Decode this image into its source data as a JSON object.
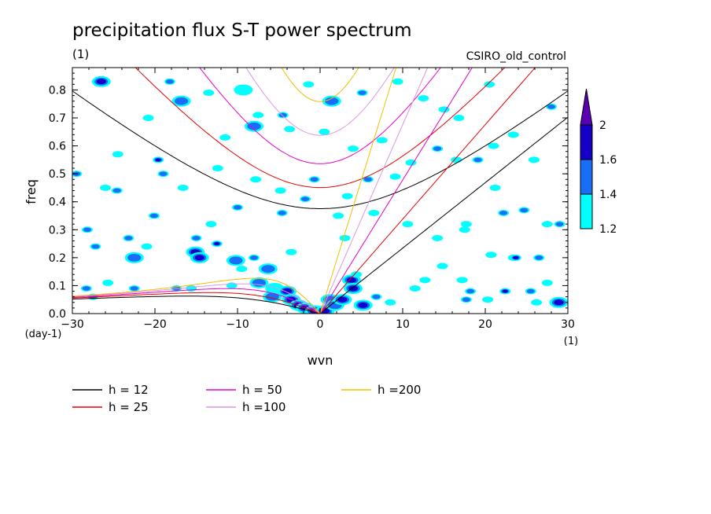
{
  "chart_data": {
    "type": "heatmap",
    "title": "precipitation flux S-T power spectrum",
    "subtitle_left": "(1)",
    "subtitle_right": "CSIRO_old_control",
    "xlabel": "wvn",
    "ylabel": "freq",
    "x_unit": "(1)",
    "y_unit": "(day-1)",
    "xlim": [
      -30,
      30
    ],
    "ylim": [
      0,
      0.88
    ],
    "x_ticks": [
      -30,
      -20,
      -10,
      0,
      10,
      20,
      30
    ],
    "y_ticks": [
      0.0,
      0.1,
      0.2,
      0.3,
      0.4,
      0.5,
      0.6,
      0.7,
      0.8
    ],
    "colorbar": {
      "levels": [
        "1.2",
        "1.4",
        "1.6",
        "2"
      ],
      "colors": [
        "#00ffff",
        "#1a6ef5",
        "#1400c8",
        "#5a00b4"
      ],
      "extend": "max"
    },
    "dispersion_curves": [
      {
        "h": 12,
        "label": "h = 12",
        "color": "#000000"
      },
      {
        "h": 25,
        "label": "h = 25",
        "color": "#e60000"
      },
      {
        "h": 50,
        "label": "h = 50",
        "color": "#e600c8"
      },
      {
        "h": 100,
        "label": "h =100",
        "color": "#dc96e6"
      },
      {
        "h": 200,
        "label": "h =200",
        "color": "#f0be00"
      }
    ],
    "blobs": [
      [
        -27.5,
        0.06,
        1,
        1.4
      ],
      [
        -20.8,
        0.7,
        1,
        1.3
      ],
      [
        -19.6,
        0.55,
        1,
        1.6
      ],
      [
        -19,
        0.5,
        1,
        1.4
      ],
      [
        -24.5,
        0.57,
        1,
        1.3
      ],
      [
        -23.2,
        0.27,
        1,
        1.4
      ],
      [
        -22.5,
        0.2,
        2,
        1.5
      ],
      [
        -20.1,
        0.35,
        1,
        1.4
      ],
      [
        -15,
        0.27,
        1,
        1.5
      ],
      [
        -15.1,
        0.22,
        2,
        1.8
      ],
      [
        -14.6,
        0.2,
        2,
        1.7
      ],
      [
        -12.5,
        0.25,
        1,
        1.6
      ],
      [
        -10.2,
        0.19,
        2,
        1.4
      ],
      [
        -9.5,
        0.16,
        1,
        1.3
      ],
      [
        -8,
        0.2,
        1,
        1.4
      ],
      [
        -6.3,
        0.16,
        2,
        1.5
      ],
      [
        -7.4,
        0.11,
        2,
        1.4
      ],
      [
        -5.5,
        0.09,
        2,
        1.3
      ],
      [
        -4,
        0.08,
        2,
        1.6
      ],
      [
        -5.8,
        0.06,
        2,
        1.4
      ],
      [
        -3.5,
        0.05,
        2,
        1.6
      ],
      [
        -2.6,
        0.03,
        2,
        1.9
      ],
      [
        -1.8,
        0.02,
        2,
        1.8
      ],
      [
        -0.7,
        0.01,
        2,
        1.9
      ],
      [
        0.6,
        0.01,
        2,
        1.6
      ],
      [
        1.2,
        0.05,
        2,
        1.5
      ],
      [
        1.8,
        0.03,
        2,
        1.5
      ],
      [
        2.7,
        0.05,
        2,
        1.6
      ],
      [
        3.8,
        0.12,
        2,
        1.8
      ],
      [
        4,
        0.09,
        2,
        1.6
      ],
      [
        5.2,
        0.03,
        2,
        1.6
      ],
      [
        4.4,
        0.14,
        1,
        1.3
      ],
      [
        6.8,
        0.06,
        1,
        1.4
      ],
      [
        8.5,
        0.04,
        1,
        1.3
      ],
      [
        -15.6,
        0.09,
        1,
        1.3
      ],
      [
        -17.4,
        0.09,
        1,
        1.4
      ],
      [
        -22.5,
        0.09,
        1,
        1.4
      ],
      [
        -28.3,
        0.09,
        1,
        1.5
      ],
      [
        -25.7,
        0.11,
        1,
        1.3
      ],
      [
        -28.2,
        0.3,
        1,
        1.4
      ],
      [
        -27.2,
        0.24,
        1,
        1.4
      ],
      [
        -29.5,
        0.5,
        1,
        1.4
      ],
      [
        -26.5,
        0.83,
        2,
        1.6
      ],
      [
        -18.2,
        0.83,
        1,
        1.4
      ],
      [
        -16.8,
        0.76,
        2,
        1.5
      ],
      [
        -9.3,
        0.8,
        2,
        1.3
      ],
      [
        -8,
        0.67,
        2,
        1.4
      ],
      [
        -7.5,
        0.71,
        1,
        1.3
      ],
      [
        -3.7,
        0.66,
        1,
        1.3
      ],
      [
        1.4,
        0.76,
        2,
        1.5
      ],
      [
        3.3,
        0.42,
        1,
        1.3
      ],
      [
        -0.7,
        0.48,
        1,
        1.4
      ],
      [
        -4.8,
        0.44,
        1,
        1.3
      ],
      [
        -7.8,
        0.48,
        1,
        1.3
      ],
      [
        -12.4,
        0.52,
        1,
        1.3
      ],
      [
        -16.6,
        0.45,
        1,
        1.3
      ],
      [
        -24.6,
        0.44,
        1,
        1.4
      ],
      [
        -26,
        0.45,
        1,
        1.3
      ],
      [
        -21,
        0.24,
        1,
        1.3
      ],
      [
        -13.2,
        0.32,
        1,
        1.3
      ],
      [
        -10,
        0.38,
        1,
        1.4
      ],
      [
        -4.6,
        0.36,
        1,
        1.5
      ],
      [
        -3.5,
        0.22,
        1,
        1.3
      ],
      [
        -1.8,
        0.41,
        1,
        1.4
      ],
      [
        2.2,
        0.35,
        1,
        1.3
      ],
      [
        3,
        0.27,
        1,
        1.3
      ],
      [
        5.8,
        0.48,
        1,
        1.5
      ],
      [
        6.5,
        0.36,
        1,
        1.3
      ],
      [
        10.6,
        0.32,
        1,
        1.3
      ],
      [
        14.2,
        0.27,
        1,
        1.3
      ],
      [
        17.5,
        0.3,
        1,
        1.3
      ],
      [
        20.7,
        0.21,
        1,
        1.3
      ],
      [
        23.4,
        0.2,
        1,
        1.3
      ],
      [
        26.5,
        0.2,
        1,
        1.4
      ],
      [
        24.7,
        0.37,
        1,
        1.4
      ],
      [
        29,
        0.32,
        1,
        1.5
      ],
      [
        27.5,
        0.32,
        1,
        1.3
      ],
      [
        22.2,
        0.36,
        1,
        1.4
      ],
      [
        16.5,
        0.55,
        1,
        1.3
      ],
      [
        19.1,
        0.55,
        1,
        1.4
      ],
      [
        21,
        0.6,
        1,
        1.3
      ],
      [
        23.4,
        0.64,
        1,
        1.3
      ],
      [
        25.9,
        0.55,
        1,
        1.3
      ],
      [
        28,
        0.74,
        1,
        1.4
      ],
      [
        15,
        0.73,
        1,
        1.3
      ],
      [
        12.5,
        0.77,
        1,
        1.3
      ],
      [
        9.4,
        0.83,
        1,
        1.3
      ],
      [
        20.5,
        0.82,
        1,
        1.3
      ],
      [
        16.8,
        0.7,
        1,
        1.3
      ],
      [
        14.2,
        0.59,
        1,
        1.4
      ],
      [
        11,
        0.54,
        1,
        1.3
      ],
      [
        9.1,
        0.49,
        1,
        1.3
      ],
      [
        7.5,
        0.62,
        1,
        1.3
      ],
      [
        4,
        0.59,
        1,
        1.3
      ],
      [
        5.1,
        0.79,
        1,
        1.4
      ],
      [
        -1.4,
        0.82,
        1,
        1.3
      ],
      [
        -4.5,
        0.71,
        1,
        1.4
      ],
      [
        0.5,
        0.65,
        1,
        1.3
      ],
      [
        -11.5,
        0.63,
        1,
        1.3
      ],
      [
        -13.5,
        0.79,
        1,
        1.3
      ],
      [
        18.2,
        0.08,
        1,
        1.5
      ],
      [
        17.2,
        0.12,
        1,
        1.3
      ],
      [
        22.4,
        0.08,
        1,
        1.6
      ],
      [
        20.3,
        0.05,
        1,
        1.3
      ],
      [
        25.5,
        0.08,
        1,
        1.4
      ],
      [
        28.9,
        0.04,
        2,
        1.6
      ],
      [
        26.2,
        0.04,
        1,
        1.3
      ],
      [
        17.7,
        0.05,
        1,
        1.4
      ],
      [
        11.5,
        0.09,
        1,
        1.3
      ],
      [
        14.8,
        0.17,
        1,
        1.3
      ],
      [
        12.7,
        0.12,
        1,
        1.3
      ],
      [
        23.7,
        0.2,
        1,
        1.6
      ],
      [
        17.7,
        0.32,
        1,
        1.3
      ],
      [
        21.2,
        0.45,
        1,
        1.3
      ],
      [
        27.5,
        0.11,
        1,
        1.3
      ],
      [
        -10.7,
        0.1,
        1,
        1.3
      ]
    ]
  }
}
